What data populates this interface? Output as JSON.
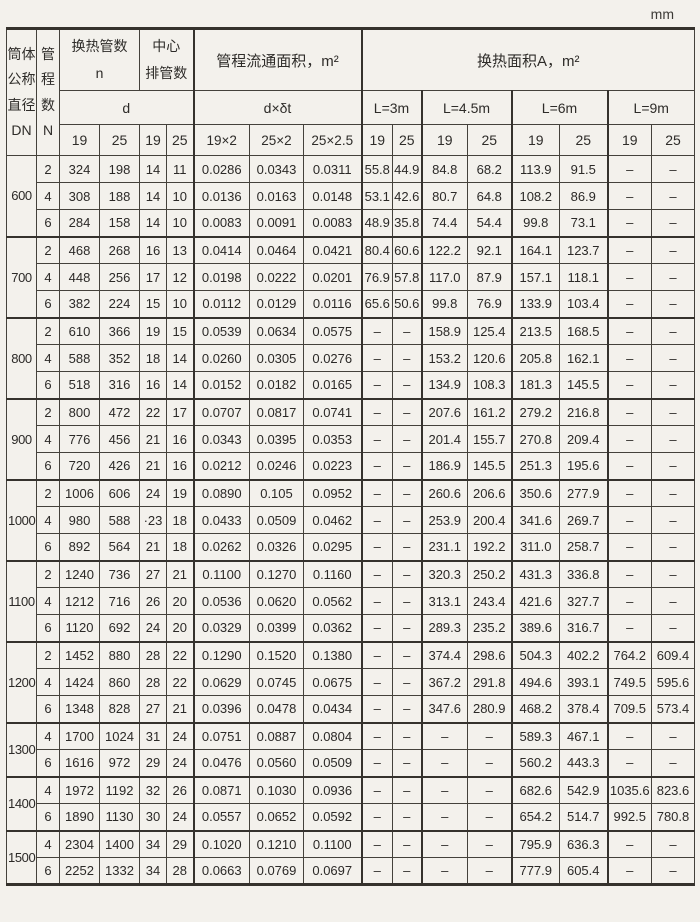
{
  "page": {
    "unit": "mm"
  },
  "table": {
    "header": {
      "dn": "筒体\n公称\n直径\nDN",
      "n_pass": "管\n程\n数\nN",
      "tubes": "换热管数\nn",
      "center": "中心\n排管数",
      "flow": "管程流通面积，m²",
      "area": "换热面积A，m²",
      "d": "d",
      "dxdt": "d×δt",
      "tube_cols": [
        "19",
        "25",
        "19",
        "25"
      ],
      "flow_cols": [
        "19×2",
        "25×2",
        "25×2.5"
      ],
      "length_groups": [
        {
          "label": "L=3m",
          "cols": [
            "19",
            "25"
          ]
        },
        {
          "label": "L=4.5m",
          "cols": [
            "19",
            "25"
          ]
        },
        {
          "label": "L=6m",
          "cols": [
            "19",
            "25"
          ]
        },
        {
          "label": "L=9m",
          "cols": [
            "19",
            "25"
          ]
        }
      ]
    },
    "groups": [
      {
        "dn": "600",
        "rows": [
          {
            "n": "2",
            "cells": [
              "324",
              "198",
              "14",
              "11",
              "0.0286",
              "0.0343",
              "0.0311",
              "55.8",
              "44.9",
              "84.8",
              "68.2",
              "113.9",
              "91.5",
              "–",
              "–"
            ]
          },
          {
            "n": "4",
            "cells": [
              "308",
              "188",
              "14",
              "10",
              "0.0136",
              "0.0163",
              "0.0148",
              "53.1",
              "42.6",
              "80.7",
              "64.8",
              "108.2",
              "86.9",
              "–",
              "–"
            ]
          },
          {
            "n": "6",
            "cells": [
              "284",
              "158",
              "14",
              "10",
              "0.0083",
              "0.0091",
              "0.0083",
              "48.9",
              "35.8",
              "74.4",
              "54.4",
              "99.8",
              "73.1",
              "–",
              "–"
            ]
          }
        ]
      },
      {
        "dn": "700",
        "rows": [
          {
            "n": "2",
            "cells": [
              "468",
              "268",
              "16",
              "13",
              "0.0414",
              "0.0464",
              "0.0421",
              "80.4",
              "60.6",
              "122.2",
              "92.1",
              "164.1",
              "123.7",
              "–",
              "–"
            ]
          },
          {
            "n": "4",
            "cells": [
              "448",
              "256",
              "17",
              "12",
              "0.0198",
              "0.0222",
              "0.0201",
              "76.9",
              "57.8",
              "117.0",
              "87.9",
              "157.1",
              "118.1",
              "–",
              "–"
            ]
          },
          {
            "n": "6",
            "cells": [
              "382",
              "224",
              "15",
              "10",
              "0.0112",
              "0.0129",
              "0.0116",
              "65.6",
              "50.6",
              "99.8",
              "76.9",
              "133.9",
              "103.4",
              "–",
              "–"
            ]
          }
        ]
      },
      {
        "dn": "800",
        "rows": [
          {
            "n": "2",
            "cells": [
              "610",
              "366",
              "19",
              "15",
              "0.0539",
              "0.0634",
              "0.0575",
              "–",
              "–",
              "158.9",
              "125.4",
              "213.5",
              "168.5",
              "–",
              "–"
            ]
          },
          {
            "n": "4",
            "cells": [
              "588",
              "352",
              "18",
              "14",
              "0.0260",
              "0.0305",
              "0.0276",
              "–",
              "–",
              "153.2",
              "120.6",
              "205.8",
              "162.1",
              "–",
              "–"
            ]
          },
          {
            "n": "6",
            "cells": [
              "518",
              "316",
              "16",
              "14",
              "0.0152",
              "0.0182",
              "0.0165",
              "–",
              "–",
              "134.9",
              "108.3",
              "181.3",
              "145.5",
              "–",
              "–"
            ]
          }
        ]
      },
      {
        "dn": "900",
        "rows": [
          {
            "n": "2",
            "cells": [
              "800",
              "472",
              "22",
              "17",
              "0.0707",
              "0.0817",
              "0.0741",
              "–",
              "–",
              "207.6",
              "161.2",
              "279.2",
              "216.8",
              "–",
              "–"
            ]
          },
          {
            "n": "4",
            "cells": [
              "776",
              "456",
              "21",
              "16",
              "0.0343",
              "0.0395",
              "0.0353",
              "–",
              "–",
              "201.4",
              "155.7",
              "270.8",
              "209.4",
              "–",
              "–"
            ]
          },
          {
            "n": "6",
            "cells": [
              "720",
              "426",
              "21",
              "16",
              "0.0212",
              "0.0246",
              "0.0223",
              "–",
              "–",
              "186.9",
              "145.5",
              "251.3",
              "195.6",
              "–",
              "–"
            ]
          }
        ]
      },
      {
        "dn": "1000",
        "rows": [
          {
            "n": "2",
            "cells": [
              "1006",
              "606",
              "24",
              "19",
              "0.0890",
              "0.105",
              "0.0952",
              "–",
              "–",
              "260.6",
              "206.6",
              "350.6",
              "277.9",
              "–",
              "–"
            ]
          },
          {
            "n": "4",
            "cells": [
              "980",
              "588",
              "·23",
              "18",
              "0.0433",
              "0.0509",
              "0.0462",
              "–",
              "–",
              "253.9",
              "200.4",
              "341.6",
              "269.7",
              "–",
              "–"
            ]
          },
          {
            "n": "6",
            "cells": [
              "892",
              "564",
              "21",
              "18",
              "0.0262",
              "0.0326",
              "0.0295",
              "–",
              "–",
              "231.1",
              "192.2",
              "311.0",
              "258.7",
              "–",
              "–"
            ]
          }
        ]
      },
      {
        "dn": "1100",
        "rows": [
          {
            "n": "2",
            "cells": [
              "1240",
              "736",
              "27",
              "21",
              "0.1100",
              "0.1270",
              "0.1160",
              "–",
              "–",
              "320.3",
              "250.2",
              "431.3",
              "336.8",
              "–",
              "–"
            ]
          },
          {
            "n": "4",
            "cells": [
              "1212",
              "716",
              "26",
              "20",
              "0.0536",
              "0.0620",
              "0.0562",
              "–",
              "–",
              "313.1",
              "243.4",
              "421.6",
              "327.7",
              "–",
              "–"
            ]
          },
          {
            "n": "6",
            "cells": [
              "1120",
              "692",
              "24",
              "20",
              "0.0329",
              "0.0399",
              "0.0362",
              "–",
              "–",
              "289.3",
              "235.2",
              "389.6",
              "316.7",
              "–",
              "–"
            ]
          }
        ]
      },
      {
        "dn": "1200",
        "rows": [
          {
            "n": "2",
            "cells": [
              "1452",
              "880",
              "28",
              "22",
              "0.1290",
              "0.1520",
              "0.1380",
              "–",
              "–",
              "374.4",
              "298.6",
              "504.3",
              "402.2",
              "764.2",
              "609.4"
            ]
          },
          {
            "n": "4",
            "cells": [
              "1424",
              "860",
              "28",
              "22",
              "0.0629",
              "0.0745",
              "0.0675",
              "–",
              "–",
              "367.2",
              "291.8",
              "494.6",
              "393.1",
              "749.5",
              "595.6"
            ]
          },
          {
            "n": "6",
            "cells": [
              "1348",
              "828",
              "27",
              "21",
              "0.0396",
              "0.0478",
              "0.0434",
              "–",
              "–",
              "347.6",
              "280.9",
              "468.2",
              "378.4",
              "709.5",
              "573.4"
            ]
          }
        ]
      },
      {
        "dn": "1300",
        "rows": [
          {
            "n": "4",
            "cells": [
              "1700",
              "1024",
              "31",
              "24",
              "0.0751",
              "0.0887",
              "0.0804",
              "–",
              "–",
              "–",
              "–",
              "589.3",
              "467.1",
              "–",
              "–"
            ]
          },
          {
            "n": "6",
            "cells": [
              "1616",
              "972",
              "29",
              "24",
              "0.0476",
              "0.0560",
              "0.0509",
              "–",
              "–",
              "–",
              "–",
              "560.2",
              "443.3",
              "–",
              "–"
            ]
          }
        ]
      },
      {
        "dn": "1400",
        "rows": [
          {
            "n": "4",
            "cells": [
              "1972",
              "1192",
              "32",
              "26",
              "0.0871",
              "0.1030",
              "0.0936",
              "–",
              "–",
              "–",
              "–",
              "682.6",
              "542.9",
              "1035.6",
              "823.6"
            ]
          },
          {
            "n": "6",
            "cells": [
              "1890",
              "1130",
              "30",
              "24",
              "0.0557",
              "0.0652",
              "0.0592",
              "–",
              "–",
              "–",
              "–",
              "654.2",
              "514.7",
              "992.5",
              "780.8"
            ]
          }
        ]
      },
      {
        "dn": "1500",
        "rows": [
          {
            "n": "4",
            "cells": [
              "2304",
              "1400",
              "34",
              "29",
              "0.1020",
              "0.1210",
              "0.1100",
              "–",
              "–",
              "–",
              "–",
              "795.9",
              "636.3",
              "–",
              "–"
            ]
          },
          {
            "n": "6",
            "cells": [
              "2252",
              "1332",
              "34",
              "28",
              "0.0663",
              "0.0769",
              "0.0697",
              "–",
              "–",
              "–",
              "–",
              "777.9",
              "605.4",
              "–",
              "–"
            ]
          }
        ]
      }
    ]
  }
}
